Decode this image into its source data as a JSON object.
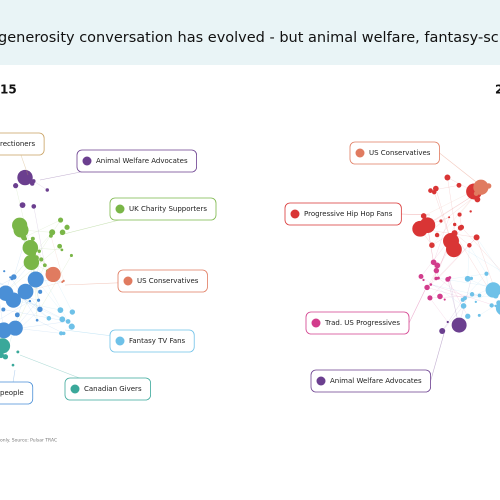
{
  "header": {
    "title": "generosity conversation has evolved - but animal welfare, fantasy-sci fi fandom"
  },
  "panels": [
    {
      "heading": "15",
      "labels": [
        "rectioners",
        "Animal Welfare Advocates",
        "UK Charity Supporters",
        "US Conservatives",
        "Fantasy TV Fans",
        "Canadian Givers",
        "people"
      ]
    },
    {
      "heading": "2",
      "labels": [
        "US Conservatives",
        "Progressive Hip Hop Fans",
        "Trad. US Progressives",
        "Animal Welfare Advocates"
      ]
    }
  ],
  "footer": "only. Source: Pulsar TRAC"
}
